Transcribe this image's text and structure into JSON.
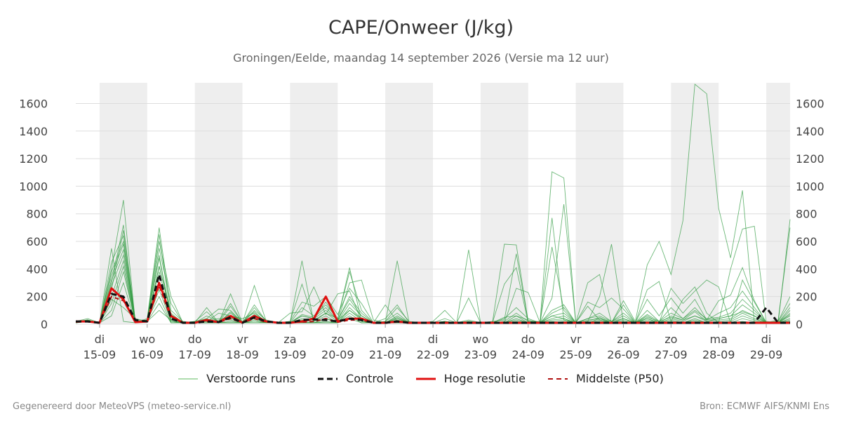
{
  "title": "CAPE/Onweer (J/kg)",
  "subtitle": "Groningen/Eelde, maandag 14 september 2026 (Versie ma 12 uur)",
  "footer": {
    "left": "Gegenereerd door MeteoVPS (meteo-service.nl)",
    "right": "Bron: ECMWF AIFS/KNMI Ens"
  },
  "legend": [
    {
      "label": "Verstoorde runs",
      "color": "#5cb85c",
      "style": "thin"
    },
    {
      "label": "Controle",
      "color": "#111111",
      "style": "dashed-thick"
    },
    {
      "label": "Hoge resolutie",
      "color": "#e01010",
      "style": "solid-thick"
    },
    {
      "label": "Middelste (P50)",
      "color": "#b01010",
      "style": "dashed"
    }
  ],
  "colors": {
    "ensemble": "#2e9a3e",
    "control": "#111111",
    "hires": "#e01010",
    "median": "#b01010",
    "shade": "#eeeeee",
    "grid": "#dddddd"
  },
  "chart_data": {
    "type": "line",
    "x_unit": "6-hourly steps starting 14-09 12:00",
    "x_step_hours": 6,
    "x_start": "2026-09-14T12:00",
    "x_end": "2026-09-29T12:00",
    "ylim": [
      0,
      1750
    ],
    "yticks": [
      0,
      200,
      400,
      600,
      800,
      1000,
      1200,
      1400,
      1600
    ],
    "grid": true,
    "legend_position": "bottom",
    "xtick_days": [
      "di",
      "wo",
      "do",
      "vr",
      "za",
      "zo",
      "ma",
      "di",
      "wo",
      "do",
      "vr",
      "za",
      "zo",
      "ma",
      "di"
    ],
    "xtick_dates": [
      "15-09",
      "16-09",
      "17-09",
      "18-09",
      "19-09",
      "20-09",
      "21-09",
      "22-09",
      "23-09",
      "24-09",
      "25-09",
      "26-09",
      "27-09",
      "28-09",
      "29-09"
    ],
    "series": [
      {
        "name": "Hoge resolutie",
        "values": [
          20,
          20,
          10,
          260,
          180,
          15,
          20,
          300,
          60,
          10,
          10,
          30,
          15,
          60,
          10,
          60,
          20,
          10,
          10,
          20,
          40,
          200,
          20,
          40,
          40,
          10,
          10,
          20,
          10,
          10,
          10,
          10,
          10,
          10,
          10,
          10,
          10,
          10,
          10,
          10,
          10,
          10,
          10,
          10,
          10,
          10,
          10,
          10,
          10,
          10,
          10,
          10,
          10,
          10,
          10,
          10,
          10,
          10,
          10,
          10,
          10
        ]
      },
      {
        "name": "Controle",
        "values": [
          20,
          20,
          10,
          220,
          200,
          30,
          20,
          360,
          40,
          10,
          10,
          20,
          15,
          50,
          10,
          50,
          20,
          10,
          10,
          30,
          35,
          30,
          20,
          40,
          30,
          10,
          10,
          20,
          10,
          10,
          10,
          10,
          10,
          10,
          10,
          10,
          10,
          10,
          10,
          10,
          10,
          10,
          10,
          10,
          10,
          10,
          10,
          10,
          10,
          10,
          10,
          10,
          10,
          10,
          10,
          10,
          10,
          10,
          120,
          10,
          10
        ]
      },
      {
        "name": "Middelste (P50)",
        "values": [
          15,
          20,
          10,
          200,
          170,
          20,
          20,
          280,
          40,
          10,
          10,
          20,
          15,
          40,
          10,
          40,
          15,
          10,
          10,
          15,
          20,
          40,
          15,
          30,
          30,
          10,
          10,
          15,
          10,
          10,
          10,
          10,
          10,
          10,
          10,
          10,
          10,
          10,
          10,
          10,
          10,
          10,
          10,
          10,
          10,
          10,
          10,
          10,
          10,
          10,
          10,
          10,
          10,
          10,
          10,
          10,
          10,
          10,
          10,
          10,
          10
        ]
      }
    ],
    "ensemble": [
      [
        20,
        40,
        10,
        550,
        20,
        10,
        40,
        700,
        100,
        20,
        10,
        30,
        10,
        220,
        10,
        280,
        20,
        10,
        10,
        460,
        10,
        40,
        20,
        300,
        320,
        30,
        10,
        460,
        10,
        10,
        10,
        20,
        10,
        190,
        10,
        10,
        580,
        575,
        20,
        20,
        1105,
        1060,
        10,
        300,
        360,
        10,
        170,
        20,
        430,
        600,
        360,
        750,
        1740,
        1670,
        840,
        480,
        970,
        10,
        20,
        10,
        20
      ],
      [
        15,
        30,
        10,
        400,
        900,
        10,
        30,
        600,
        200,
        10,
        20,
        90,
        10,
        130,
        10,
        120,
        20,
        10,
        80,
        90,
        270,
        70,
        220,
        240,
        20,
        10,
        140,
        20,
        10,
        10,
        20,
        100,
        10,
        20,
        10,
        20,
        30,
        510,
        20,
        10,
        770,
        30,
        10,
        20,
        200,
        580,
        10,
        10,
        250,
        310,
        20,
        180,
        270,
        80,
        10,
        400,
        690,
        710,
        10,
        10,
        760
      ],
      [
        20,
        20,
        10,
        300,
        720,
        20,
        20,
        550,
        150,
        10,
        10,
        60,
        20,
        150,
        10,
        140,
        20,
        10,
        20,
        290,
        20,
        80,
        40,
        410,
        20,
        10,
        40,
        140,
        10,
        10,
        10,
        10,
        10,
        10,
        10,
        10,
        290,
        410,
        10,
        10,
        560,
        100,
        10,
        160,
        120,
        190,
        110,
        10,
        40,
        10,
        260,
        150,
        240,
        320,
        270,
        10,
        320,
        160,
        10,
        30,
        700
      ],
      [
        10,
        30,
        10,
        450,
        640,
        10,
        20,
        420,
        80,
        10,
        20,
        40,
        110,
        100,
        10,
        100,
        30,
        10,
        20,
        160,
        130,
        200,
        70,
        260,
        150,
        10,
        20,
        120,
        20,
        10,
        10,
        20,
        10,
        540,
        10,
        10,
        10,
        260,
        230,
        10,
        190,
        870,
        10,
        130,
        30,
        10,
        140,
        10,
        180,
        60,
        190,
        80,
        180,
        30,
        170,
        210,
        410,
        170,
        10,
        20,
        200
      ],
      [
        20,
        25,
        10,
        380,
        600,
        20,
        30,
        480,
        60,
        10,
        10,
        20,
        80,
        60,
        40,
        80,
        20,
        10,
        10,
        120,
        60,
        140,
        40,
        380,
        100,
        10,
        20,
        80,
        10,
        10,
        10,
        40,
        10,
        10,
        10,
        10,
        20,
        80,
        20,
        10,
        100,
        140,
        10,
        40,
        80,
        20,
        80,
        10,
        100,
        20,
        120,
        40,
        120,
        30,
        80,
        120,
        240,
        120,
        10,
        20,
        150
      ],
      [
        15,
        20,
        10,
        350,
        580,
        10,
        30,
        500,
        40,
        10,
        10,
        30,
        40,
        40,
        20,
        60,
        10,
        10,
        10,
        60,
        40,
        100,
        30,
        200,
        80,
        10,
        10,
        60,
        10,
        10,
        10,
        20,
        10,
        10,
        10,
        10,
        10,
        60,
        10,
        10,
        60,
        80,
        10,
        20,
        50,
        10,
        40,
        10,
        60,
        10,
        60,
        30,
        90,
        20,
        40,
        60,
        140,
        80,
        10,
        10,
        100
      ],
      [
        20,
        30,
        10,
        320,
        540,
        10,
        20,
        380,
        30,
        10,
        10,
        20,
        30,
        30,
        10,
        50,
        10,
        10,
        10,
        40,
        30,
        80,
        20,
        150,
        60,
        10,
        10,
        40,
        10,
        10,
        10,
        10,
        10,
        10,
        10,
        10,
        10,
        40,
        10,
        10,
        40,
        60,
        10,
        10,
        40,
        10,
        30,
        10,
        40,
        10,
        40,
        20,
        60,
        20,
        30,
        40,
        100,
        60,
        10,
        10,
        80
      ],
      [
        10,
        20,
        10,
        280,
        500,
        20,
        30,
        650,
        50,
        10,
        10,
        30,
        20,
        50,
        10,
        40,
        10,
        10,
        10,
        30,
        20,
        60,
        10,
        120,
        40,
        10,
        10,
        30,
        10,
        10,
        10,
        10,
        10,
        10,
        10,
        10,
        10,
        30,
        10,
        10,
        30,
        40,
        10,
        10,
        30,
        10,
        20,
        10,
        30,
        10,
        30,
        10,
        40,
        10,
        20,
        30,
        80,
        40,
        10,
        10,
        60
      ],
      [
        20,
        20,
        10,
        200,
        460,
        10,
        20,
        300,
        20,
        10,
        10,
        10,
        10,
        20,
        10,
        30,
        10,
        10,
        10,
        20,
        10,
        40,
        10,
        100,
        30,
        10,
        10,
        20,
        10,
        10,
        10,
        10,
        10,
        10,
        10,
        10,
        10,
        20,
        10,
        10,
        20,
        30,
        10,
        10,
        20,
        10,
        10,
        10,
        20,
        10,
        20,
        10,
        30,
        10,
        10,
        20,
        60,
        30,
        10,
        10,
        40
      ],
      [
        15,
        25,
        10,
        150,
        420,
        10,
        20,
        250,
        20,
        10,
        10,
        10,
        10,
        10,
        10,
        20,
        10,
        10,
        10,
        10,
        10,
        20,
        10,
        80,
        20,
        10,
        10,
        10,
        10,
        10,
        10,
        10,
        10,
        10,
        10,
        10,
        10,
        10,
        10,
        10,
        10,
        20,
        10,
        10,
        10,
        10,
        10,
        10,
        10,
        10,
        10,
        10,
        20,
        10,
        10,
        10,
        40,
        20,
        10,
        10,
        30
      ],
      [
        20,
        30,
        10,
        100,
        380,
        20,
        30,
        200,
        10,
        10,
        10,
        10,
        10,
        10,
        10,
        10,
        10,
        10,
        10,
        10,
        10,
        10,
        10,
        60,
        10,
        10,
        10,
        10,
        10,
        10,
        10,
        10,
        10,
        10,
        10,
        10,
        10,
        10,
        10,
        10,
        10,
        10,
        10,
        10,
        10,
        10,
        10,
        10,
        10,
        10,
        10,
        10,
        10,
        10,
        10,
        10,
        20,
        10,
        10,
        10,
        20
      ],
      [
        10,
        20,
        10,
        60,
        300,
        10,
        20,
        150,
        10,
        10,
        10,
        10,
        10,
        10,
        10,
        10,
        10,
        10,
        10,
        10,
        10,
        10,
        10,
        40,
        10,
        10,
        10,
        10,
        10,
        10,
        10,
        10,
        10,
        10,
        10,
        10,
        10,
        10,
        10,
        10,
        10,
        10,
        10,
        10,
        10,
        10,
        10,
        10,
        10,
        10,
        10,
        10,
        10,
        10,
        10,
        10,
        10,
        10,
        10,
        10,
        10
      ],
      [
        20,
        20,
        10,
        250,
        680,
        30,
        20,
        420,
        70,
        10,
        10,
        40,
        10,
        90,
        10,
        90,
        10,
        10,
        10,
        70,
        50,
        120,
        30,
        180,
        60,
        10,
        10,
        50,
        10,
        10,
        10,
        10,
        10,
        20,
        10,
        10,
        40,
        120,
        40,
        10,
        80,
        120,
        10,
        40,
        60,
        20,
        60,
        10,
        70,
        20,
        80,
        40,
        100,
        40,
        50,
        80,
        180,
        100,
        10,
        10,
        120
      ],
      [
        15,
        20,
        10,
        180,
        120,
        40,
        20,
        100,
        30,
        10,
        10,
        120,
        10,
        80,
        10,
        70,
        20,
        10,
        10,
        60,
        40,
        160,
        30,
        100,
        40,
        10,
        10,
        40,
        10,
        10,
        10,
        10,
        10,
        30,
        10,
        10,
        50,
        60,
        30,
        10,
        60,
        40,
        10,
        30,
        40,
        20,
        40,
        10,
        50,
        20,
        50,
        30,
        60,
        30,
        40,
        60,
        90,
        60,
        10,
        10,
        70
      ]
    ]
  }
}
